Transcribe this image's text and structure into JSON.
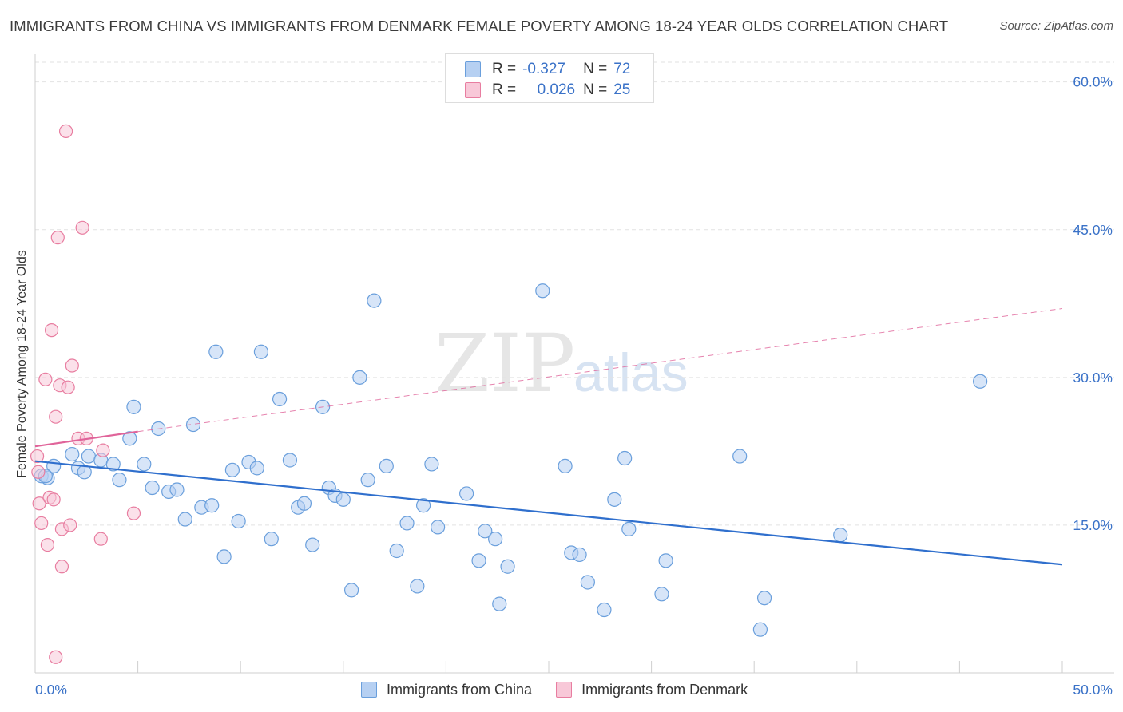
{
  "title": "IMMIGRANTS FROM CHINA VS IMMIGRANTS FROM DENMARK FEMALE POVERTY AMONG 18-24 YEAR OLDS CORRELATION CHART",
  "source": "Source: ZipAtlas.com",
  "watermark": {
    "zip": "ZIP",
    "atlas": "atlas"
  },
  "legend_top": [
    {
      "r_label": "R =",
      "r_value": "-0.327",
      "n_label": "N =",
      "n_value": "72"
    },
    {
      "r_label": "R =",
      "r_value": "0.026",
      "n_label": "N =",
      "n_value": "25"
    }
  ],
  "chart_data": {
    "type": "scatter",
    "title": "IMMIGRANTS FROM CHINA VS IMMIGRANTS FROM DENMARK FEMALE POVERTY AMONG 18-24 YEAR OLDS CORRELATION CHART",
    "xlabel": "",
    "ylabel": "Female Poverty Among 18-24 Year Olds",
    "xlim": [
      0,
      50
    ],
    "ylim": [
      0,
      62
    ],
    "x_tick_labels": [
      "0.0%",
      "50.0%"
    ],
    "y_tick_labels": [
      "15.0%",
      "30.0%",
      "45.0%",
      "60.0%"
    ],
    "y_ticks": [
      15,
      30,
      45,
      60
    ],
    "x_minor_ticks": [
      0,
      5,
      10,
      15,
      20,
      25,
      30,
      35,
      40,
      45,
      50
    ],
    "colors": {
      "china": "#6a9fdc",
      "china_fill": "#b6d0f2",
      "denmark": "#e87da0",
      "denmark_fill": "#f8c8d8",
      "china_line": "#2f6fcd",
      "denmark_line": "#e0649a"
    },
    "series": [
      {
        "name": "Immigrants from China",
        "r": -0.327,
        "n": 72,
        "trend": {
          "x0": 0,
          "y0": 21.5,
          "x1": 50,
          "y1": 11.0
        },
        "points": [
          [
            0.3,
            20.0
          ],
          [
            0.6,
            19.8
          ],
          [
            0.9,
            21.0
          ],
          [
            1.8,
            22.2
          ],
          [
            2.1,
            20.8
          ],
          [
            2.4,
            20.4
          ],
          [
            2.6,
            22.0
          ],
          [
            3.2,
            21.6
          ],
          [
            3.8,
            21.2
          ],
          [
            4.1,
            19.6
          ],
          [
            4.6,
            23.8
          ],
          [
            4.8,
            27.0
          ],
          [
            5.3,
            21.2
          ],
          [
            5.7,
            18.8
          ],
          [
            6.0,
            24.8
          ],
          [
            6.5,
            18.4
          ],
          [
            6.9,
            18.6
          ],
          [
            7.3,
            15.6
          ],
          [
            7.7,
            25.2
          ],
          [
            8.1,
            16.8
          ],
          [
            8.6,
            17.0
          ],
          [
            8.8,
            32.6
          ],
          [
            9.2,
            11.8
          ],
          [
            9.6,
            20.6
          ],
          [
            9.9,
            15.4
          ],
          [
            10.4,
            21.4
          ],
          [
            10.8,
            20.8
          ],
          [
            11.0,
            32.6
          ],
          [
            11.5,
            13.6
          ],
          [
            11.9,
            27.8
          ],
          [
            12.4,
            21.6
          ],
          [
            12.8,
            16.8
          ],
          [
            13.1,
            17.2
          ],
          [
            13.5,
            13.0
          ],
          [
            14.0,
            27.0
          ],
          [
            14.3,
            18.8
          ],
          [
            14.6,
            18.0
          ],
          [
            15.0,
            17.6
          ],
          [
            15.4,
            8.4
          ],
          [
            15.8,
            30.0
          ],
          [
            16.2,
            19.6
          ],
          [
            16.5,
            37.8
          ],
          [
            17.1,
            21.0
          ],
          [
            17.6,
            12.4
          ],
          [
            18.1,
            15.2
          ],
          [
            18.6,
            8.8
          ],
          [
            18.9,
            17.0
          ],
          [
            19.3,
            21.2
          ],
          [
            19.6,
            14.8
          ],
          [
            21.0,
            18.2
          ],
          [
            21.6,
            11.4
          ],
          [
            21.9,
            14.4
          ],
          [
            22.4,
            13.6
          ],
          [
            22.6,
            7.0
          ],
          [
            23.0,
            10.8
          ],
          [
            24.7,
            38.8
          ],
          [
            25.8,
            21.0
          ],
          [
            26.1,
            12.2
          ],
          [
            26.5,
            12.0
          ],
          [
            26.9,
            9.2
          ],
          [
            27.7,
            6.4
          ],
          [
            28.2,
            17.6
          ],
          [
            28.7,
            21.8
          ],
          [
            28.9,
            14.6
          ],
          [
            30.5,
            8.0
          ],
          [
            30.7,
            11.4
          ],
          [
            34.3,
            22.0
          ],
          [
            35.3,
            4.4
          ],
          [
            35.5,
            7.6
          ],
          [
            39.2,
            14.0
          ],
          [
            46.0,
            29.6
          ],
          [
            0.5,
            20.0
          ]
        ]
      },
      {
        "name": "Immigrants from Denmark",
        "r": 0.026,
        "n": 25,
        "trend": {
          "x0": 0,
          "y0": 23.0,
          "x1": 5,
          "y1": 24.5
        },
        "trend_extended": {
          "x0": 5,
          "y0": 24.5,
          "x1": 50,
          "y1": 37.0
        },
        "points": [
          [
            0.1,
            22.0
          ],
          [
            0.15,
            20.4
          ],
          [
            0.2,
            17.2
          ],
          [
            0.3,
            15.2
          ],
          [
            0.5,
            29.8
          ],
          [
            0.6,
            13.0
          ],
          [
            0.7,
            17.8
          ],
          [
            0.8,
            34.8
          ],
          [
            0.9,
            17.6
          ],
          [
            1.0,
            26.0
          ],
          [
            1.0,
            1.6
          ],
          [
            1.1,
            44.2
          ],
          [
            1.2,
            29.2
          ],
          [
            1.3,
            14.6
          ],
          [
            1.3,
            10.8
          ],
          [
            1.5,
            55.0
          ],
          [
            1.6,
            29.0
          ],
          [
            1.7,
            15.0
          ],
          [
            1.8,
            31.2
          ],
          [
            2.1,
            23.8
          ],
          [
            2.3,
            45.2
          ],
          [
            2.5,
            23.8
          ],
          [
            3.2,
            13.6
          ],
          [
            3.3,
            22.6
          ],
          [
            4.8,
            16.2
          ]
        ]
      }
    ]
  },
  "legend_bottom": [
    "Immigrants from China",
    "Immigrants from Denmark"
  ]
}
